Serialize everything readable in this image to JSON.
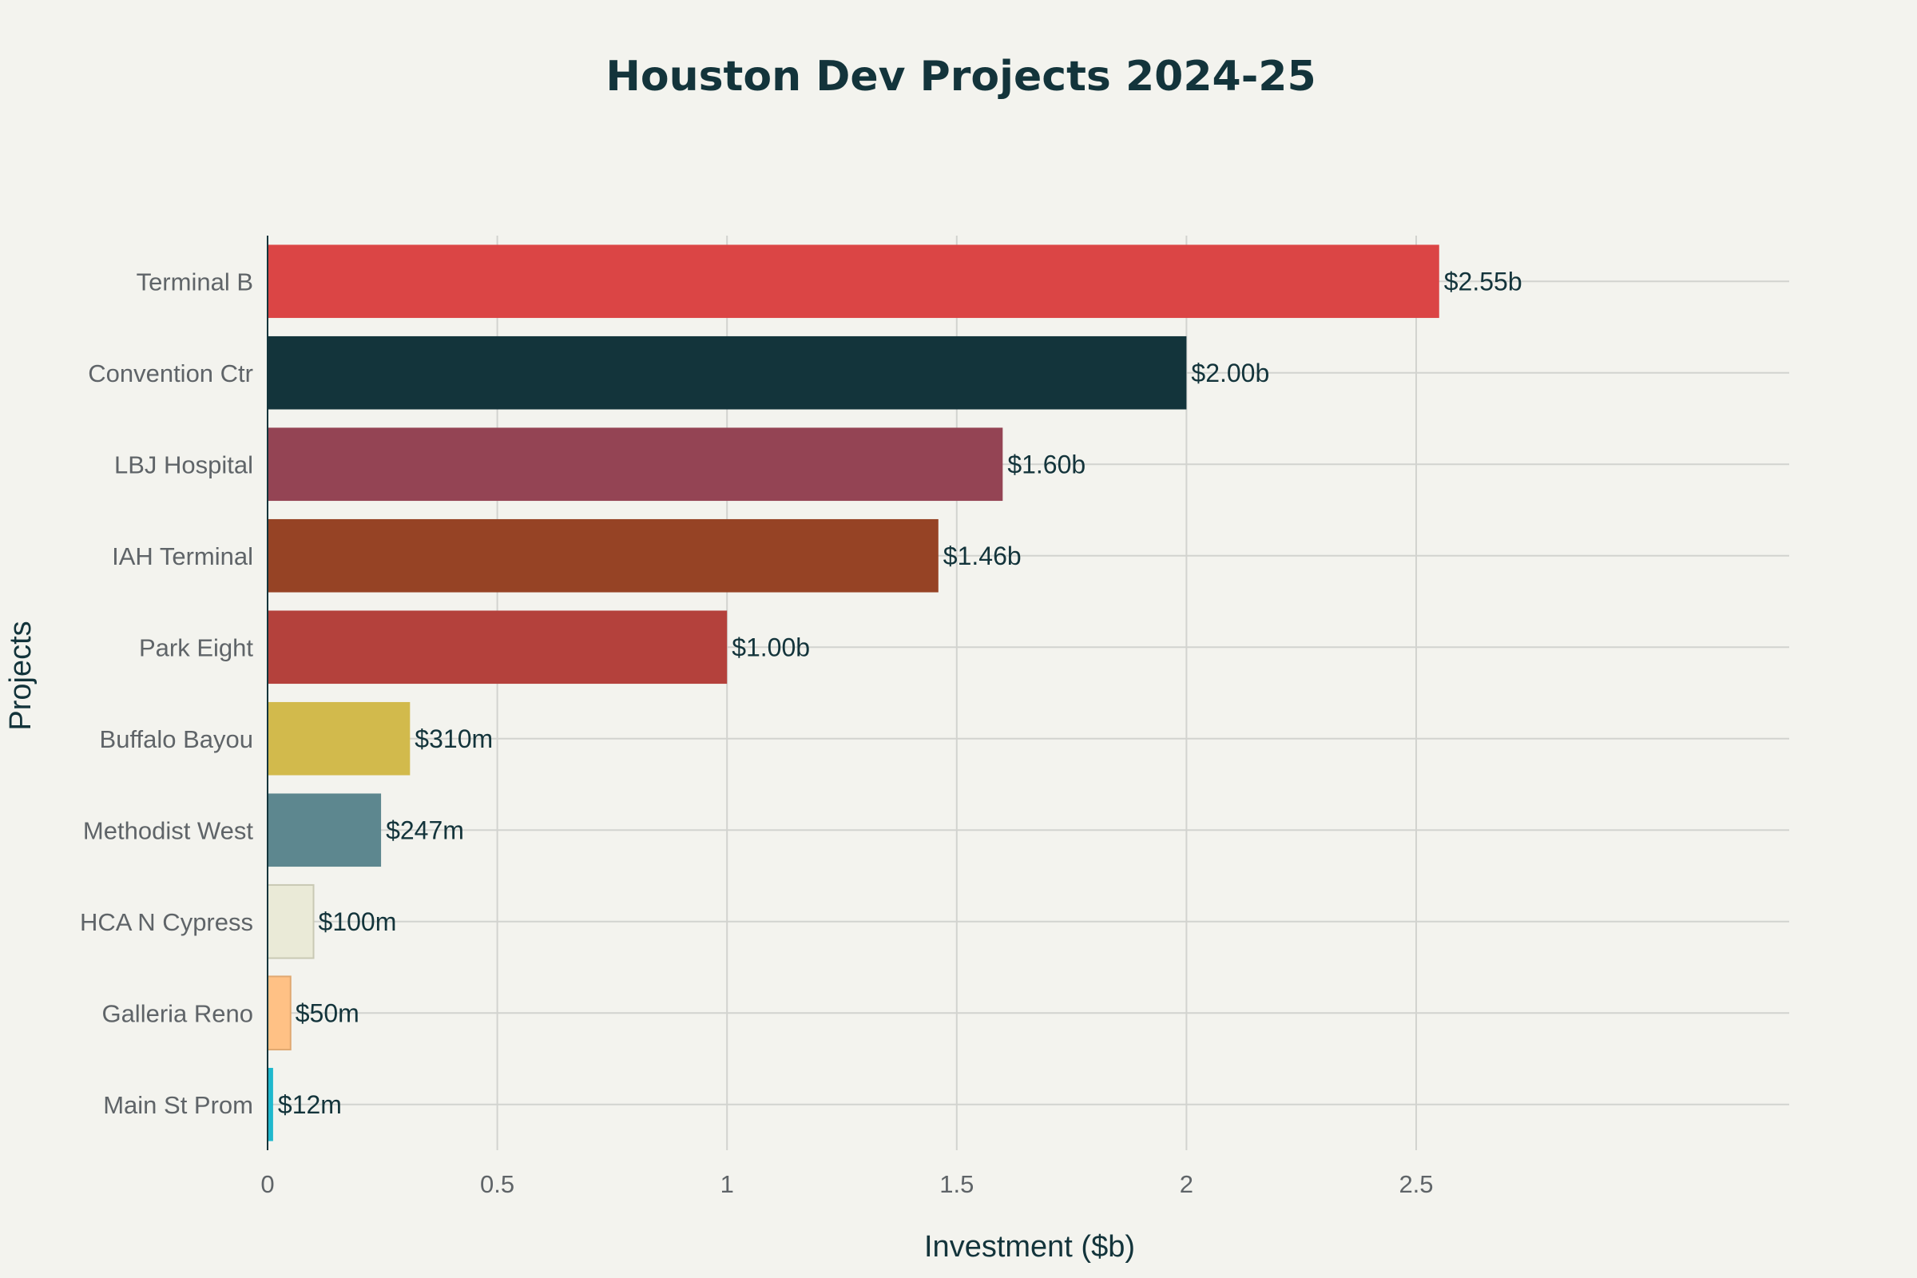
{
  "chart_data": {
    "type": "bar",
    "orientation": "horizontal",
    "title": "Houston Dev Projects 2024-25",
    "xlabel": "Investment ($b)",
    "ylabel": "Projects",
    "xlim": [
      0,
      2.68
    ],
    "xticks": [
      0,
      0.5,
      1,
      1.5,
      2,
      2.5
    ],
    "xtick_labels": [
      "0",
      "0.5",
      "1",
      "1.5",
      "2",
      "2.5"
    ],
    "grid": true,
    "categories": [
      "Terminal B",
      "Convention Ctr",
      "LBJ Hospital",
      "IAH Terminal",
      "Park Eight",
      "Buffalo Bayou",
      "Methodist West",
      "HCA N Cypress",
      "Galleria Reno",
      "Main St Prom"
    ],
    "values": [
      2.55,
      2.0,
      1.6,
      1.46,
      1.0,
      0.31,
      0.247,
      0.1,
      0.05,
      0.012
    ],
    "data_labels": [
      "$2.55b",
      "$2.00b",
      "$1.60b",
      "$1.46b",
      "$1.00b",
      "$310m",
      "$247m",
      "$100m",
      "$50m",
      "$12m"
    ],
    "colors": [
      "#db4545",
      "#13343b",
      "#944454",
      "#964325",
      "#b4413c",
      "#d2ba4c",
      "#5d878f",
      "#eaead7",
      "#ffc185",
      "#1fb8cd"
    ]
  }
}
